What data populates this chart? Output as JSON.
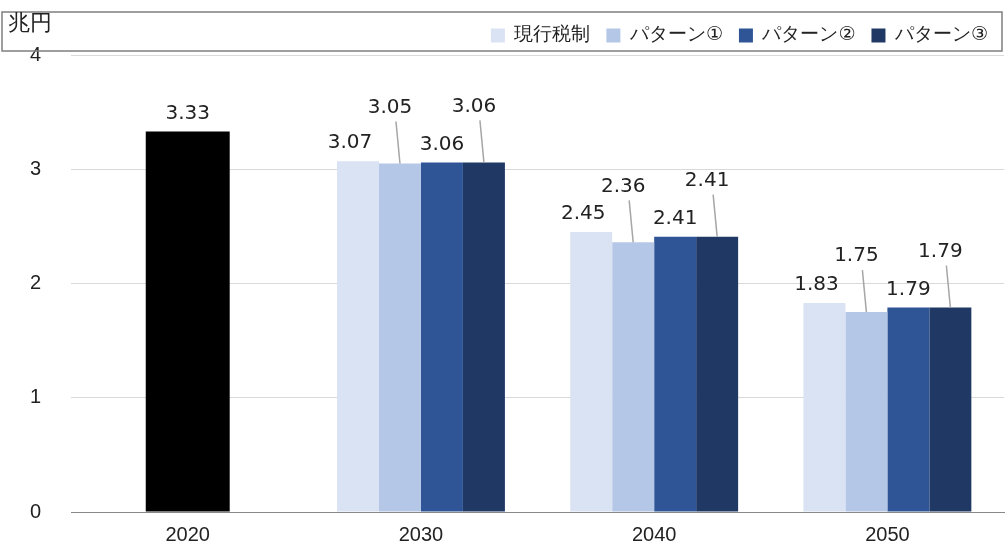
{
  "chart_data": {
    "type": "bar",
    "ylabel": "兆円",
    "categories": [
      "2020",
      "2030",
      "2040",
      "2050"
    ],
    "series": [
      {
        "color": "#000000",
        "values": [
          3.33,
          null,
          null,
          null
        ]
      },
      {
        "name": "現行税制",
        "color": "#dae3f3",
        "values": [
          null,
          3.07,
          2.45,
          1.83
        ]
      },
      {
        "name": "パターン①",
        "color": "#b4c7e7",
        "values": [
          null,
          3.05,
          2.36,
          1.75
        ]
      },
      {
        "name": "パターン②",
        "color": "#2f5597",
        "values": [
          null,
          3.06,
          2.41,
          1.79
        ]
      },
      {
        "name": "パターン③",
        "color": "#203864",
        "values": [
          null,
          3.06,
          2.41,
          1.79
        ]
      }
    ],
    "ylim": [
      0,
      4
    ],
    "yticks": [
      0,
      1,
      2,
      3,
      4
    ],
    "grid": "y",
    "legend": "top right",
    "data_labels": true
  }
}
